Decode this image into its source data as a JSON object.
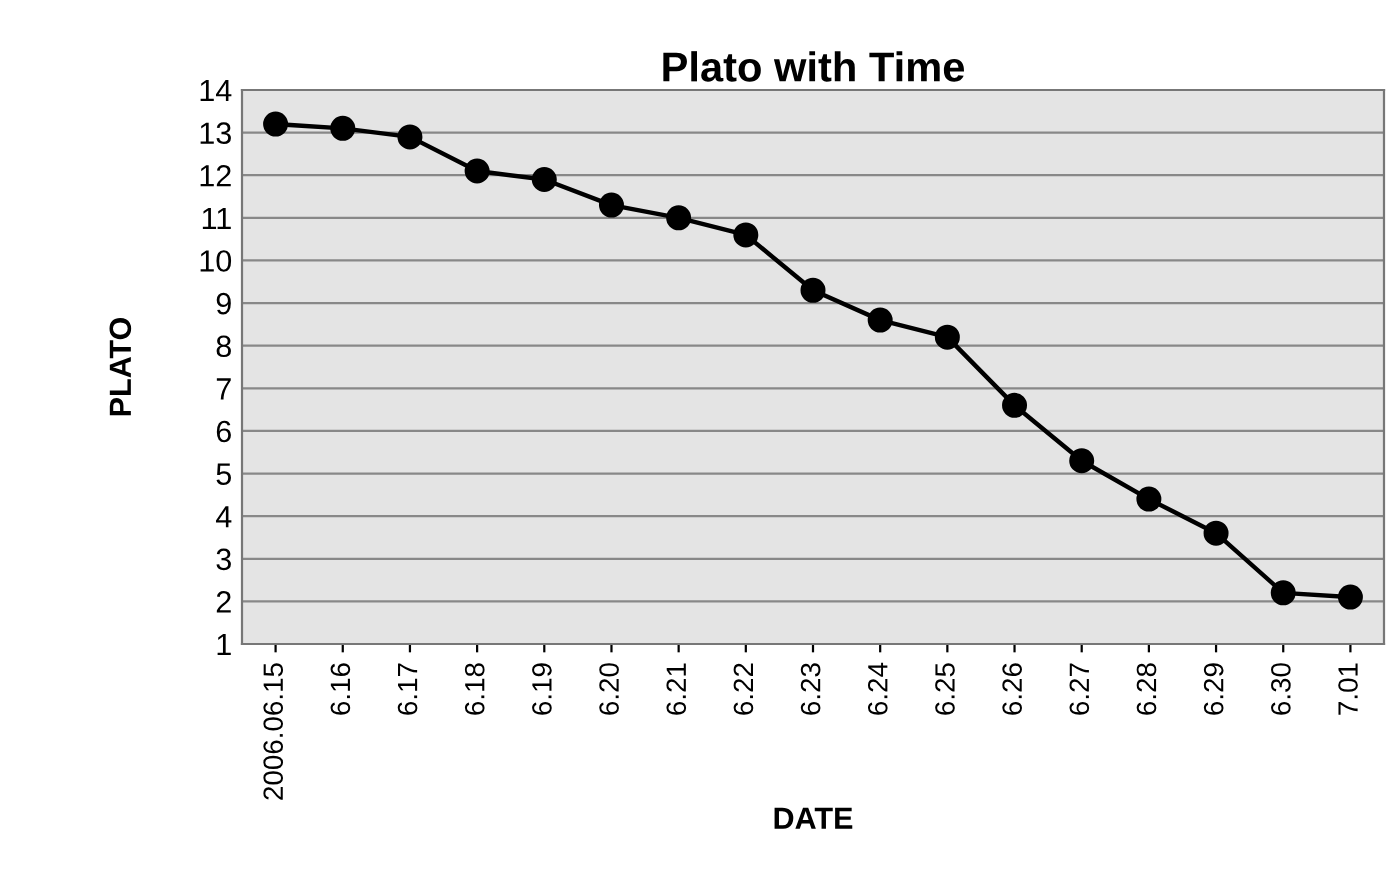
{
  "chart_data": {
    "type": "line",
    "title": "Plato with Time",
    "xlabel": "DATE",
    "ylabel": "PLATO",
    "categories": [
      "2006.06.15",
      "6.16",
      "6.17",
      "6.18",
      "6.19",
      "6.20",
      "6.21",
      "6.22",
      "6.23",
      "6.24",
      "6.25",
      "6.26",
      "6.27",
      "6.28",
      "6.29",
      "6.30",
      "7.01"
    ],
    "series": [
      {
        "color": "#000000",
        "values": [
          13.2,
          13.1,
          12.9,
          12.1,
          11.9,
          11.3,
          11.0,
          10.6,
          9.3,
          8.6,
          8.2,
          6.6,
          5.3,
          4.4,
          3.6,
          2.2,
          2.1
        ]
      }
    ],
    "ylim": [
      1,
      14
    ],
    "yticks": [
      1,
      2,
      3,
      4,
      5,
      6,
      7,
      8,
      9,
      10,
      11,
      12,
      13,
      14
    ],
    "grid": "y",
    "marker": "circle",
    "line_style": "solid"
  }
}
